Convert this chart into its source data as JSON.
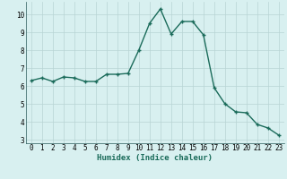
{
  "x": [
    0,
    1,
    2,
    3,
    4,
    5,
    6,
    7,
    8,
    9,
    10,
    11,
    12,
    13,
    14,
    15,
    16,
    17,
    18,
    19,
    20,
    21,
    22,
    23
  ],
  "y": [
    6.3,
    6.45,
    6.25,
    6.5,
    6.45,
    6.25,
    6.25,
    6.65,
    6.65,
    6.7,
    8.0,
    9.5,
    10.3,
    8.9,
    9.6,
    9.6,
    8.85,
    5.9,
    5.0,
    4.55,
    4.5,
    3.85,
    3.65,
    3.25
  ],
  "line_color": "#1a6b5a",
  "marker": "+",
  "markersize": 3,
  "linewidth": 1.0,
  "bg_color": "#d8f0f0",
  "grid_color": "#b8d4d4",
  "xlabel": "Humidex (Indice chaleur)",
  "xlabel_fontsize": 6.5,
  "xlim": [
    -0.5,
    23.5
  ],
  "ylim": [
    2.8,
    10.7
  ],
  "yticks": [
    3,
    4,
    5,
    6,
    7,
    8,
    9,
    10
  ],
  "xticks": [
    0,
    1,
    2,
    3,
    4,
    5,
    6,
    7,
    8,
    9,
    10,
    11,
    12,
    13,
    14,
    15,
    16,
    17,
    18,
    19,
    20,
    21,
    22,
    23
  ],
  "tick_fontsize": 5.5
}
